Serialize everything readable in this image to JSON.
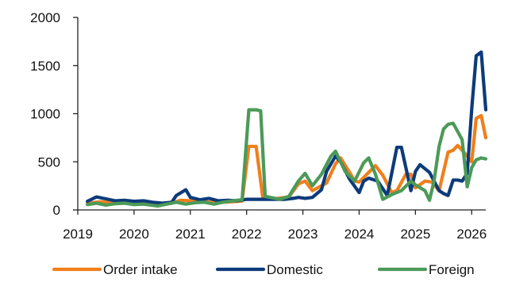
{
  "chart_data": {
    "type": "line",
    "title": "",
    "xlabel": "",
    "ylabel": "",
    "ylim": [
      0,
      2000
    ],
    "xlim": [
      2019,
      2026.25
    ],
    "grid": false,
    "legend_position": "bottom",
    "y_ticks": [
      "0",
      "500",
      "1000",
      "1500",
      "2000"
    ],
    "x_ticks": [
      "2019",
      "2020",
      "2021",
      "2022",
      "2023",
      "2024",
      "2025",
      "2026"
    ],
    "series": [
      {
        "name": "Order intake",
        "color": "#F07F1B",
        "points": [
          [
            2019.17,
            70
          ],
          [
            2019.42,
            85
          ],
          [
            2019.67,
            72
          ],
          [
            2019.92,
            80
          ],
          [
            2020.17,
            68
          ],
          [
            2020.42,
            60
          ],
          [
            2020.67,
            70
          ],
          [
            2020.83,
            100
          ],
          [
            2021.0,
            95
          ],
          [
            2021.17,
            85
          ],
          [
            2021.42,
            80
          ],
          [
            2021.67,
            82
          ],
          [
            2021.92,
            92
          ],
          [
            2022.04,
            660
          ],
          [
            2022.17,
            660
          ],
          [
            2022.29,
            120
          ],
          [
            2022.5,
            115
          ],
          [
            2022.75,
            135
          ],
          [
            2022.92,
            270
          ],
          [
            2023.04,
            300
          ],
          [
            2023.17,
            200
          ],
          [
            2023.42,
            280
          ],
          [
            2023.58,
            480
          ],
          [
            2023.67,
            540
          ],
          [
            2023.83,
            390
          ],
          [
            2023.92,
            300
          ],
          [
            2024.0,
            290
          ],
          [
            2024.17,
            390
          ],
          [
            2024.29,
            460
          ],
          [
            2024.42,
            360
          ],
          [
            2024.58,
            180
          ],
          [
            2024.67,
            200
          ],
          [
            2024.83,
            370
          ],
          [
            2024.92,
            370
          ],
          [
            2025.0,
            230
          ],
          [
            2025.17,
            300
          ],
          [
            2025.29,
            290
          ],
          [
            2025.42,
            200
          ],
          [
            2025.58,
            600
          ],
          [
            2025.67,
            620
          ],
          [
            2025.75,
            670
          ],
          [
            2025.83,
            620
          ],
          [
            2025.92,
            560
          ],
          [
            2026.0,
            500
          ],
          [
            2026.08,
            950
          ],
          [
            2026.17,
            980
          ],
          [
            2026.25,
            750
          ]
        ]
      },
      {
        "name": "Domestic",
        "color": "#0D3B7A",
        "points": [
          [
            2019.17,
            90
          ],
          [
            2019.33,
            135
          ],
          [
            2019.5,
            115
          ],
          [
            2019.67,
            95
          ],
          [
            2019.83,
            100
          ],
          [
            2020.0,
            90
          ],
          [
            2020.17,
            95
          ],
          [
            2020.33,
            80
          ],
          [
            2020.5,
            70
          ],
          [
            2020.67,
            80
          ],
          [
            2020.75,
            150
          ],
          [
            2020.92,
            210
          ],
          [
            2021.0,
            130
          ],
          [
            2021.17,
            105
          ],
          [
            2021.33,
            120
          ],
          [
            2021.5,
            95
          ],
          [
            2021.67,
            100
          ],
          [
            2021.83,
            95
          ],
          [
            2022.0,
            110
          ],
          [
            2022.17,
            110
          ],
          [
            2022.33,
            110
          ],
          [
            2022.5,
            110
          ],
          [
            2022.67,
            110
          ],
          [
            2022.83,
            120
          ],
          [
            2022.92,
            130
          ],
          [
            2023.04,
            120
          ],
          [
            2023.17,
            130
          ],
          [
            2023.33,
            210
          ],
          [
            2023.42,
            400
          ],
          [
            2023.58,
            560
          ],
          [
            2023.67,
            500
          ],
          [
            2023.83,
            320
          ],
          [
            2024.0,
            180
          ],
          [
            2024.08,
            300
          ],
          [
            2024.17,
            330
          ],
          [
            2024.33,
            300
          ],
          [
            2024.5,
            150
          ],
          [
            2024.67,
            650
          ],
          [
            2024.75,
            650
          ],
          [
            2024.92,
            200
          ],
          [
            2025.0,
            400
          ],
          [
            2025.08,
            470
          ],
          [
            2025.25,
            390
          ],
          [
            2025.42,
            200
          ],
          [
            2025.5,
            170
          ],
          [
            2025.58,
            150
          ],
          [
            2025.67,
            310
          ],
          [
            2025.75,
            310
          ],
          [
            2025.83,
            300
          ],
          [
            2025.92,
            380
          ],
          [
            2026.0,
            1050
          ],
          [
            2026.08,
            1600
          ],
          [
            2026.17,
            1640
          ],
          [
            2026.25,
            1040
          ]
        ]
      },
      {
        "name": "Foreign",
        "color": "#4C9A58",
        "points": [
          [
            2019.17,
            55
          ],
          [
            2019.33,
            70
          ],
          [
            2019.5,
            50
          ],
          [
            2019.67,
            65
          ],
          [
            2019.83,
            70
          ],
          [
            2020.0,
            55
          ],
          [
            2020.17,
            60
          ],
          [
            2020.42,
            40
          ],
          [
            2020.58,
            60
          ],
          [
            2020.75,
            80
          ],
          [
            2020.92,
            60
          ],
          [
            2021.08,
            75
          ],
          [
            2021.25,
            80
          ],
          [
            2021.42,
            60
          ],
          [
            2021.58,
            80
          ],
          [
            2021.75,
            95
          ],
          [
            2021.92,
            105
          ],
          [
            2022.04,
            1040
          ],
          [
            2022.17,
            1040
          ],
          [
            2022.25,
            1030
          ],
          [
            2022.33,
            140
          ],
          [
            2022.42,
            130
          ],
          [
            2022.58,
            110
          ],
          [
            2022.75,
            140
          ],
          [
            2022.92,
            300
          ],
          [
            2023.04,
            380
          ],
          [
            2023.17,
            250
          ],
          [
            2023.33,
            370
          ],
          [
            2023.5,
            560
          ],
          [
            2023.58,
            610
          ],
          [
            2023.75,
            400
          ],
          [
            2023.92,
            300
          ],
          [
            2024.08,
            490
          ],
          [
            2024.17,
            540
          ],
          [
            2024.29,
            370
          ],
          [
            2024.42,
            110
          ],
          [
            2024.58,
            160
          ],
          [
            2024.75,
            200
          ],
          [
            2024.92,
            300
          ],
          [
            2025.0,
            260
          ],
          [
            2025.17,
            200
          ],
          [
            2025.25,
            100
          ],
          [
            2025.33,
            300
          ],
          [
            2025.42,
            660
          ],
          [
            2025.5,
            840
          ],
          [
            2025.58,
            890
          ],
          [
            2025.67,
            900
          ],
          [
            2025.83,
            730
          ],
          [
            2025.92,
            240
          ],
          [
            2026.0,
            440
          ],
          [
            2026.08,
            520
          ],
          [
            2026.17,
            540
          ],
          [
            2026.25,
            530
          ]
        ]
      }
    ]
  }
}
